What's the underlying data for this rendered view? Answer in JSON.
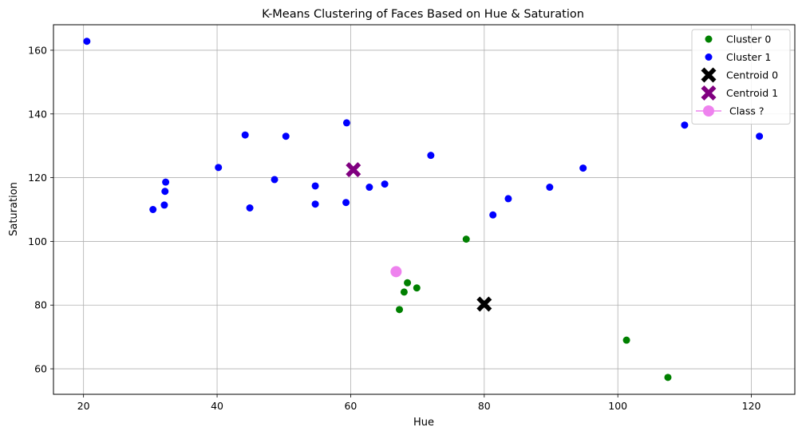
{
  "chart_data": {
    "type": "scatter",
    "title": "K-Means Clustering of Faces Based on Hue & Saturation",
    "xlabel": "Hue",
    "ylabel": "Saturation",
    "xlim": [
      15.5,
      126.5
    ],
    "ylim": [
      52,
      168
    ],
    "xticks": [
      20,
      40,
      60,
      80,
      100,
      120
    ],
    "yticks": [
      60,
      80,
      100,
      120,
      140,
      160
    ],
    "grid": true,
    "legend_position": "top-right",
    "series": [
      {
        "name": "Cluster 0",
        "color": "#008000",
        "marker": "circle",
        "points": [
          [
            77.3,
            100.7
          ],
          [
            68.5,
            87.0
          ],
          [
            69.9,
            85.4
          ],
          [
            68.0,
            84.1
          ],
          [
            67.3,
            78.6
          ],
          [
            101.3,
            69.0
          ],
          [
            107.5,
            57.3
          ]
        ]
      },
      {
        "name": "Cluster 1",
        "color": "#0000ff",
        "marker": "circle",
        "points": [
          [
            20.5,
            162.8
          ],
          [
            59.4,
            137.2
          ],
          [
            44.2,
            133.4
          ],
          [
            50.3,
            133.0
          ],
          [
            110.0,
            136.5
          ],
          [
            121.2,
            133.0
          ],
          [
            72.0,
            127.0
          ],
          [
            40.2,
            123.2
          ],
          [
            94.8,
            123.0
          ],
          [
            48.6,
            119.4
          ],
          [
            32.3,
            118.6
          ],
          [
            32.2,
            115.7
          ],
          [
            32.1,
            111.4
          ],
          [
            30.4,
            110.0
          ],
          [
            54.7,
            117.4
          ],
          [
            65.1,
            118.0
          ],
          [
            62.8,
            117.0
          ],
          [
            89.8,
            117.0
          ],
          [
            44.9,
            110.5
          ],
          [
            54.7,
            111.7
          ],
          [
            59.3,
            112.2
          ],
          [
            83.6,
            113.4
          ],
          [
            81.3,
            108.3
          ]
        ]
      },
      {
        "name": "Centroid 0",
        "color": "#000000",
        "marker": "X",
        "points": [
          [
            80.0,
            80.3
          ]
        ]
      },
      {
        "name": "Centroid 1",
        "color": "#800080",
        "marker": "X",
        "points": [
          [
            60.4,
            122.5
          ]
        ]
      },
      {
        "name": " Class ?",
        "color": "#ee82ee",
        "marker": "circle-line",
        "points": [
          [
            66.8,
            90.5
          ]
        ]
      }
    ]
  }
}
